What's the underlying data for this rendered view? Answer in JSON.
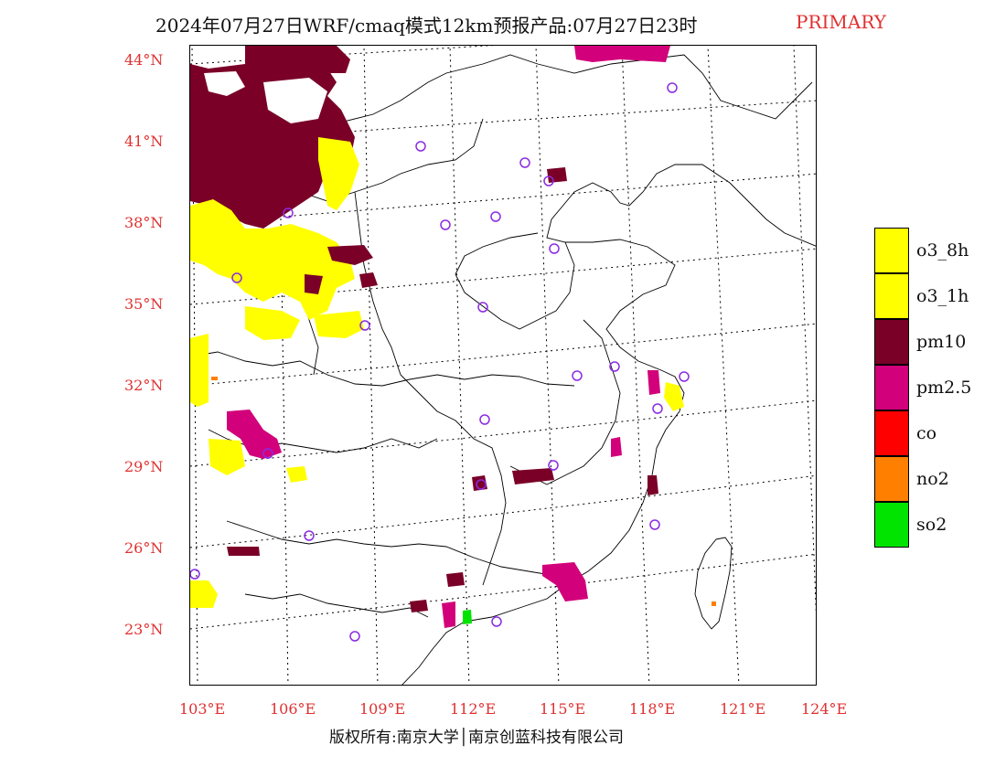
{
  "title": {
    "main": "2024年07月27日WRF/cmaq模式12km预报产品:07月27日23时",
    "tag": "PRIMARY"
  },
  "map": {
    "lat_labels": [
      "44°N",
      "41°N",
      "38°N",
      "35°N",
      "32°N",
      "29°N",
      "26°N",
      "23°N"
    ],
    "lon_labels": [
      "103°E",
      "106°E",
      "109°E",
      "112°E",
      "115°E",
      "118°E",
      "121°E",
      "124°E"
    ],
    "primary_pollutant_regions": [
      {
        "pollutant": "pm10",
        "area": "Inner Mongolia / northwest (north of 38°N, 103-108°E)"
      },
      {
        "pollutant": "o3_8h",
        "area": "Gansu / Ningxia / Shaanxi north (34-38°N, 103-109°E)"
      },
      {
        "pollutant": "pm2.5",
        "area": "Sichuan basin / Chongqing (29-31°N, 104-106°E)"
      },
      {
        "pollutant": "pm2.5",
        "area": "Guangdong / Jiangxi border (24-25°N, 115-116°E)"
      },
      {
        "pollutant": "so2",
        "area": "Guangdong (23.5°N, 112°E)"
      },
      {
        "pollutant": "no2",
        "area": "Taiwan west coast"
      }
    ],
    "colors": {
      "o3_8h": "#ffff00",
      "o3_1h": "#ffff00",
      "pm10": "#7a0028",
      "pm2.5": "#d2007a",
      "co": "#ff0000",
      "no2": "#ff7f00",
      "so2": "#00e400",
      "station_marker": "#8b2be2",
      "axis_label": "#e03030"
    }
  },
  "legend": [
    {
      "label": "o3_8h",
      "color": "#ffff00"
    },
    {
      "label": "o3_1h",
      "color": "#ffff00"
    },
    {
      "label": "pm10",
      "color": "#7a0028"
    },
    {
      "label": "pm2.5",
      "color": "#d2007a"
    },
    {
      "label": "co",
      "color": "#ff0000"
    },
    {
      "label": "no2",
      "color": "#ff7f00"
    },
    {
      "label": "so2",
      "color": "#00e400"
    }
  ],
  "footer": {
    "copyright": "版权所有:南京大学│南京创蓝科技有限公司"
  }
}
